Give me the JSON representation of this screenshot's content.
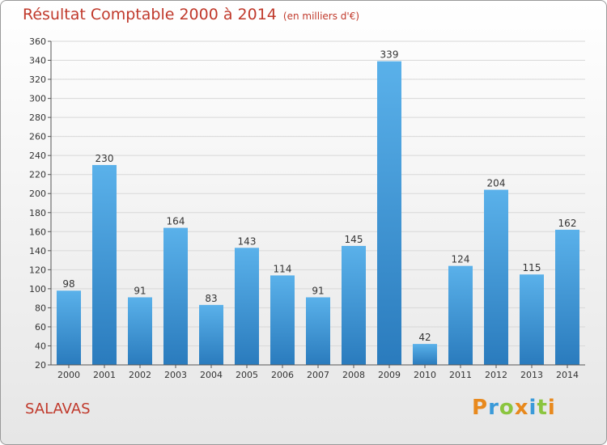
{
  "title": "Résultat Comptable 2000 à 2014",
  "unit": "(en milliers d'€)",
  "commune": "SALAVAS",
  "logo": "Proxiti",
  "colors": {
    "title": "#c0392b",
    "bar_top": "#5ab1ea",
    "bar_bottom": "#2a7bbd",
    "grid": "#d8d8d8"
  },
  "chart_data": {
    "type": "bar",
    "categories": [
      "2000",
      "2001",
      "2002",
      "2003",
      "2004",
      "2005",
      "2006",
      "2007",
      "2008",
      "2009",
      "2010",
      "2011",
      "2012",
      "2013",
      "2014"
    ],
    "values": [
      98,
      230,
      91,
      164,
      83,
      143,
      114,
      91,
      145,
      339,
      42,
      124,
      204,
      115,
      162
    ],
    "title": "Résultat Comptable 2000 à 2014",
    "xlabel": "",
    "ylabel": "",
    "ylim": [
      20,
      360
    ],
    "ytick_step": 20,
    "yticks": [
      "20",
      "40",
      "60",
      "80",
      "100",
      "120",
      "140",
      "160",
      "180",
      "200",
      "220",
      "240",
      "260",
      "280",
      "300",
      "320",
      "340",
      "360"
    ],
    "grid": true,
    "data_labels": [
      "98",
      "230",
      "91",
      "164",
      "83",
      "143",
      "114",
      "91",
      "145",
      "339",
      "42",
      "124",
      "204",
      "115",
      "162"
    ]
  }
}
